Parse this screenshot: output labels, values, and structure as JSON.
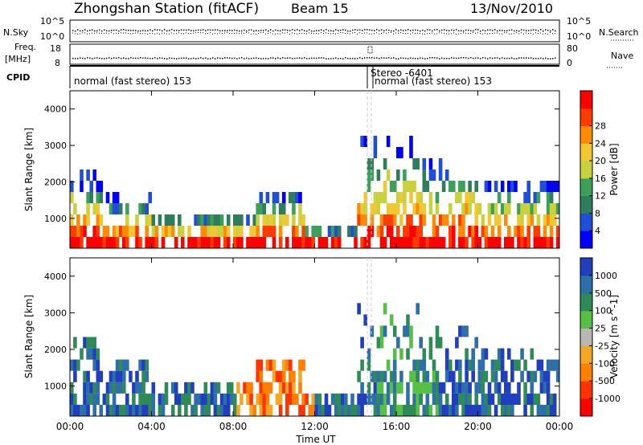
{
  "header": {
    "title": "Zhongshan Station (fitACF)",
    "beam": "Beam 15",
    "date": "13/Nov/2010"
  },
  "panels": {
    "nsky_label": "N.Sky",
    "nsearch_label": "N.Search",
    "freq_label_1": "Freq.",
    "freq_label_2": "[MHz]",
    "nave_label": "Nave",
    "cpid_label": "CPID",
    "nsky_ticks": [
      "10^5",
      "10^0"
    ],
    "nsearch_ticks": [
      "10^5",
      "10^0"
    ],
    "freq_ticks": [
      "18",
      "8"
    ],
    "nave_ticks": [
      "80",
      "0"
    ],
    "cpid_segments": [
      "normal (fast stereo) 153",
      "Stereo -6401",
      "normal (fast stereo) 153"
    ]
  },
  "chart_data": [
    {
      "type": "heatmap",
      "title": "",
      "xlabel": "Time UT",
      "ylabel": "Slant Range [km]",
      "x_ticks": [
        "00:00",
        "04:00",
        "08:00",
        "12:00",
        "16:00",
        "20:00",
        "00:00"
      ],
      "y_ticks": [
        1000,
        2000,
        3000,
        4000
      ],
      "xlim_hours": [
        0,
        24
      ],
      "ylim_km": [
        180,
        4500
      ],
      "colorbar": {
        "label": "Power [dB]",
        "ticks": [
          "4",
          "8",
          "12",
          "16",
          "20",
          "24",
          "28"
        ],
        "colors": [
          "#0000ff",
          "#1f4fd8",
          "#2e7d5b",
          "#3aa05a",
          "#c8d23c",
          "#f2c832",
          "#ff8c00",
          "#ff3c00",
          "#ff0000"
        ]
      }
    },
    {
      "type": "heatmap",
      "title": "",
      "xlabel": "Time UT",
      "ylabel": "Slant Range [km]",
      "x_ticks": [
        "00:00",
        "04:00",
        "08:00",
        "12:00",
        "16:00",
        "20:00",
        "00:00"
      ],
      "y_ticks": [
        1000,
        2000,
        3000,
        4000
      ],
      "xlim_hours": [
        0,
        24
      ],
      "ylim_km": [
        180,
        4500
      ],
      "colorbar": {
        "label": "Velocity [m s^-1]",
        "ticks": [
          "1000",
          "500",
          "100",
          "25",
          "-25",
          "-100",
          "-500",
          "-1000"
        ],
        "colors": [
          "#1f3fbf",
          "#2d6fa8",
          "#2e8b57",
          "#55c043",
          "#b8b8b0",
          "#f5a623",
          "#ff7f00",
          "#ff3300",
          "#ff0000"
        ]
      }
    }
  ],
  "x_axis_label": "Time UT"
}
